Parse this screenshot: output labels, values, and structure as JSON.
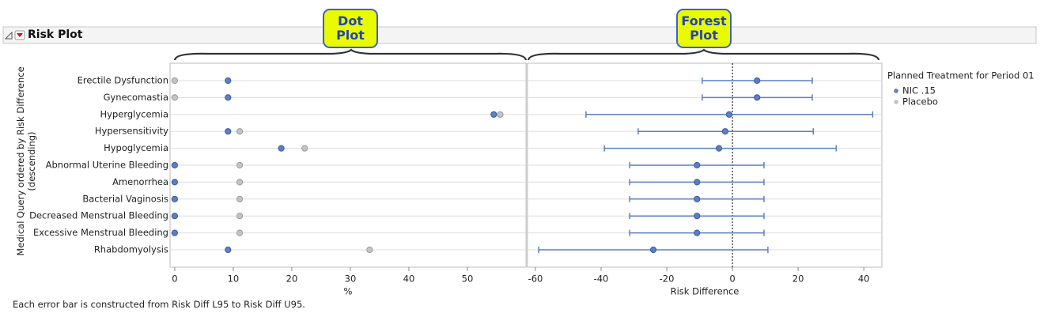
{
  "panel_title": "Risk Plot",
  "callouts": [
    "Dot Plot",
    "Forest Plot"
  ],
  "footnote": "Each error bar is constructed from Risk Diff L95 to Risk Diff U95.",
  "chart_data": [
    {
      "type": "dot",
      "y_label": "Medical Query ordered by Risk Difference (descending)",
      "x_label": "%",
      "categories": [
        "Erectile Dysfunction",
        "Gynecomastia",
        "Hyperglycemia",
        "Hypersensitivity",
        "Hypoglycemia",
        "Abnormal Uterine Bleeding",
        "Amenorrhea",
        "Bacterial Vaginosis",
        "Decreased Menstrual Bleeding",
        "Excessive Menstrual Bleeding",
        "Rhabdomyolysis"
      ],
      "series": [
        {
          "name": "NIC .15",
          "color": "#5b7fc7",
          "values": [
            9.1,
            9.1,
            54.5,
            9.1,
            18.2,
            0,
            0,
            0,
            0,
            0,
            9.1
          ]
        },
        {
          "name": "Placebo",
          "color": "#c4c4c4",
          "values": [
            0,
            0,
            55.6,
            11.1,
            22.2,
            11.1,
            11.1,
            11.1,
            11.1,
            11.1,
            33.3
          ]
        }
      ],
      "legend_title": "Planned Treatment for Period 01",
      "legend": "right",
      "xlim": [
        -0.8,
        60
      ],
      "xticks": [
        0,
        10,
        20,
        30,
        40,
        50
      ],
      "grid": true
    },
    {
      "type": "forest",
      "x_label": "Risk Difference",
      "color": "#5b7fc7",
      "values": [
        7.5,
        7.5,
        -1.0,
        -2.2,
        -4.1,
        -10.8,
        -10.8,
        -10.8,
        -10.8,
        -10.8,
        -24.1
      ],
      "lower": [
        -9.2,
        -9.2,
        -44.6,
        -28.7,
        -39.0,
        -31.3,
        -31.3,
        -31.3,
        -31.3,
        -31.3,
        -59.0
      ],
      "upper": [
        24.3,
        24.3,
        42.7,
        24.6,
        31.6,
        9.6,
        9.6,
        9.6,
        9.6,
        9.6,
        10.8
      ],
      "xlim": [
        -62.4,
        45.5
      ],
      "xticks": [
        -60,
        -40,
        -20,
        0,
        20,
        40
      ],
      "reference_line": 0,
      "grid": true
    }
  ]
}
